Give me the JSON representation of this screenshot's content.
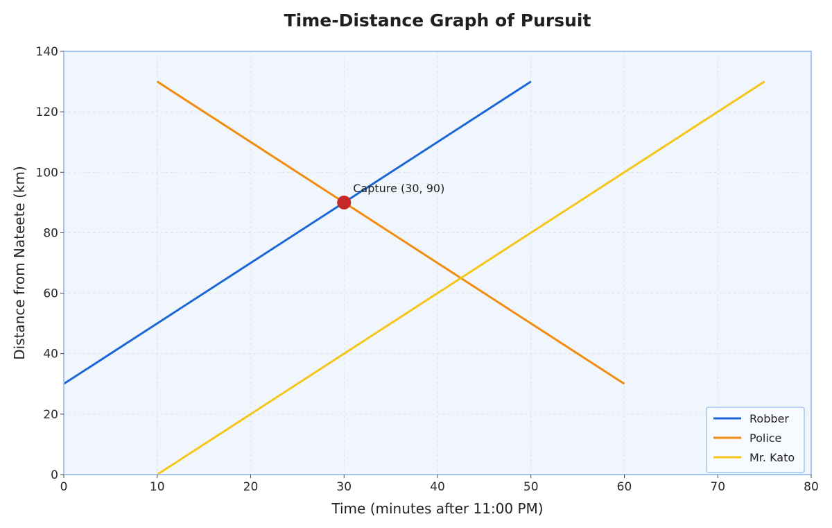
{
  "chart_data": {
    "type": "line",
    "title": "Time-Distance Graph of Pursuit",
    "xlabel": "Time (minutes after 11:00 PM)",
    "ylabel": "Distance from Nateete (km)",
    "xlim": [
      0,
      80
    ],
    "ylim": [
      0,
      140
    ],
    "xticks": [
      0,
      10,
      20,
      30,
      40,
      50,
      60,
      70,
      80
    ],
    "yticks": [
      0,
      20,
      40,
      60,
      80,
      100,
      120,
      140
    ],
    "grid": true,
    "legend_position": "bottom-right",
    "series": [
      {
        "name": "Robber",
        "color": "#1a66d6",
        "x": [
          0,
          50
        ],
        "y": [
          30,
          130
        ]
      },
      {
        "name": "Police",
        "color": "#f28c0f",
        "x": [
          10,
          60
        ],
        "y": [
          130,
          30
        ]
      },
      {
        "name": "Mr. Kato",
        "color": "#f5c518",
        "x": [
          10,
          75
        ],
        "y": [
          0,
          130
        ]
      }
    ],
    "annotations": [
      {
        "text": "Capture (30, 90)",
        "x": 30,
        "y": 90,
        "marker_color": "#c62828"
      }
    ]
  }
}
